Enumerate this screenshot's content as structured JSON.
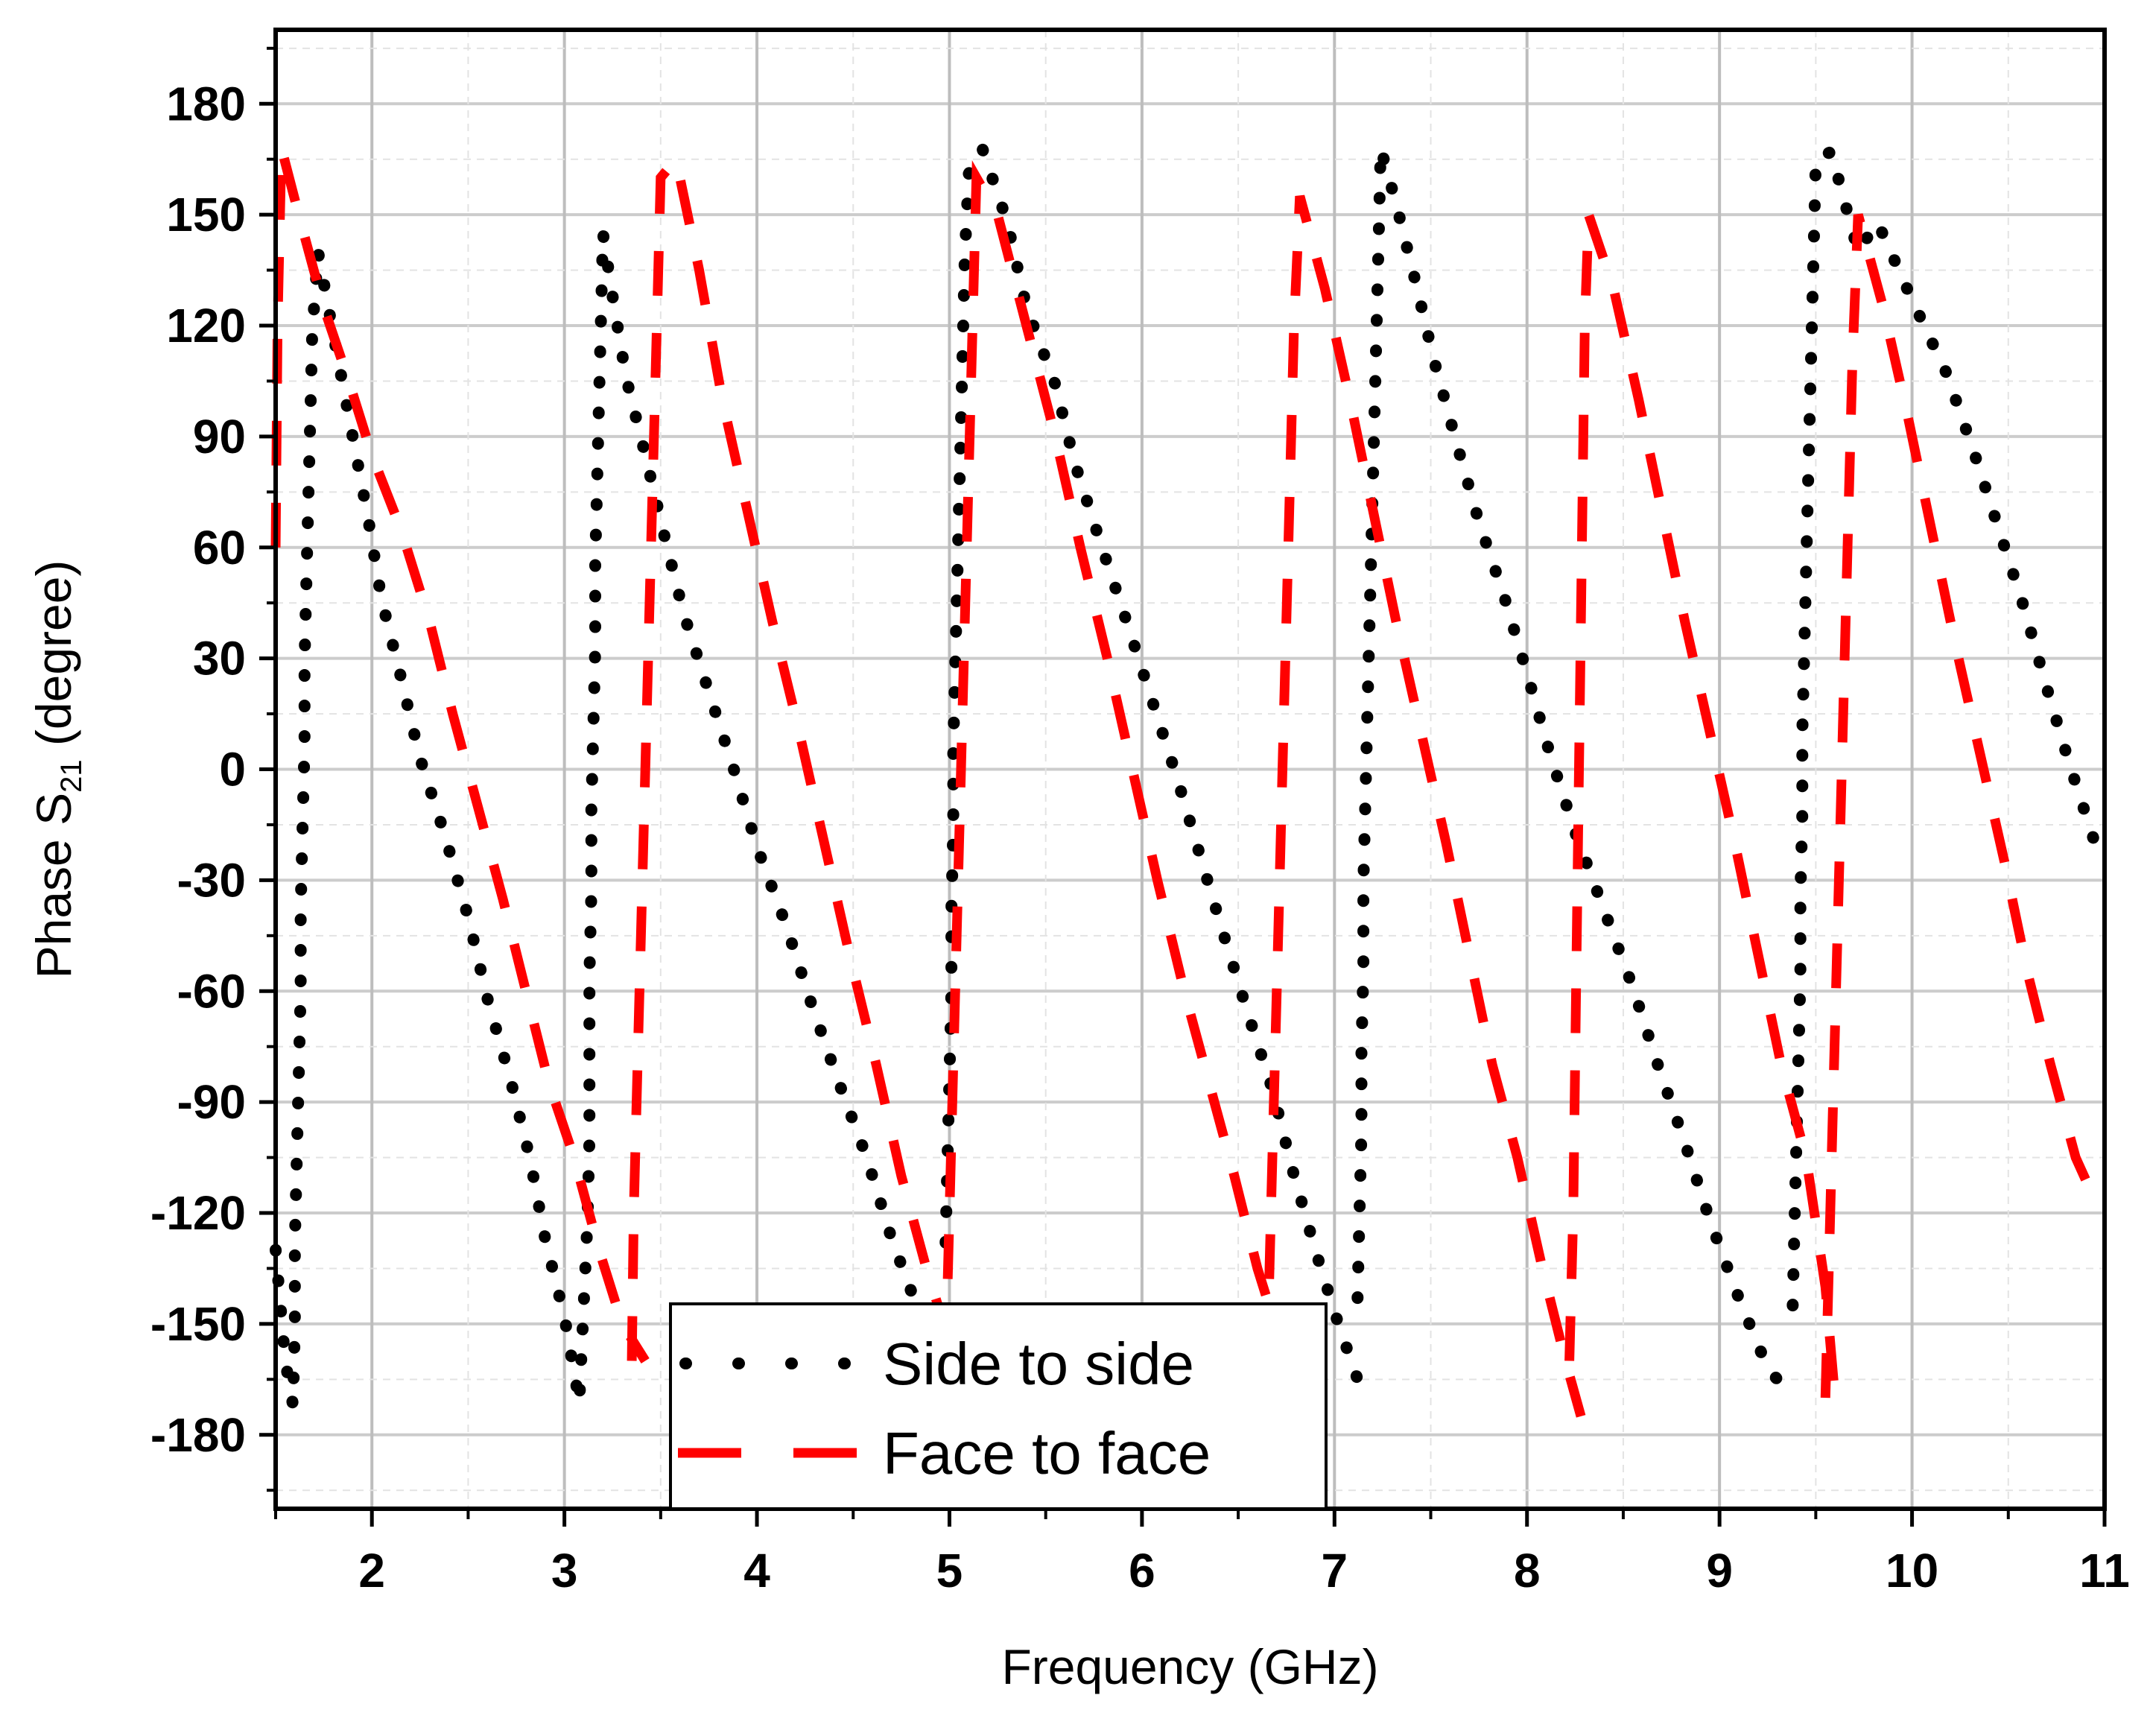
{
  "chart_data": {
    "type": "line",
    "xlabel": "Frequency (GHz)",
    "ylabel_main": "Phase  S",
    "ylabel_sub": "21",
    "ylabel_end": " (degree)",
    "xlim": [
      1.5,
      11
    ],
    "ylim": [
      -200,
      200
    ],
    "xticks": [
      2,
      3,
      4,
      5,
      6,
      7,
      8,
      9,
      10,
      11
    ],
    "yticks": [
      180,
      150,
      120,
      90,
      60,
      30,
      0,
      -30,
      -60,
      -90,
      -120,
      -150,
      -180
    ],
    "grid": true,
    "legend_position": "bottom-center",
    "series": [
      {
        "name": "Side to side",
        "color": "#000000",
        "style": "dotted",
        "segments": [
          [
            [
              1.5,
              -130
            ],
            [
              1.55,
              -160
            ],
            [
              1.59,
              -172
            ],
            [
              1.6,
              -150
            ],
            [
              1.6,
              -128
            ],
            [
              1.61,
              -105
            ],
            [
              1.62,
              -83
            ],
            [
              1.63,
              -60
            ],
            [
              1.63,
              -38
            ],
            [
              1.64,
              -15
            ],
            [
              1.65,
              7
            ],
            [
              1.65,
              29
            ],
            [
              1.66,
              51
            ],
            [
              1.67,
              73
            ],
            [
              1.68,
              95
            ],
            [
              1.69,
              118
            ],
            [
              1.72,
              140
            ],
            [
              1.82,
              112
            ],
            [
              1.9,
              90
            ],
            [
              1.98,
              68
            ],
            [
              2.05,
              46
            ],
            [
              2.15,
              25
            ],
            [
              2.25,
              3
            ],
            [
              2.38,
              -18
            ],
            [
              2.5,
              -40
            ],
            [
              2.6,
              -62
            ],
            [
              2.72,
              -84
            ],
            [
              2.82,
              -105
            ],
            [
              2.9,
              -127
            ],
            [
              3.0,
              -148
            ],
            [
              3.08,
              -172
            ]
          ],
          [
            [
              3.08,
              -168
            ],
            [
              3.1,
              -145
            ],
            [
              3.12,
              -122
            ],
            [
              3.13,
              -100
            ],
            [
              3.13,
              -78
            ],
            [
              3.13,
              -56
            ],
            [
              3.14,
              -33
            ],
            [
              3.14,
              -11
            ],
            [
              3.15,
              11
            ],
            [
              3.16,
              33
            ],
            [
              3.16,
              56
            ],
            [
              3.17,
              78
            ],
            [
              3.18,
              100
            ],
            [
              3.19,
              122
            ],
            [
              3.2,
              145
            ],
            [
              3.25,
              128
            ],
            [
              3.32,
              106
            ],
            [
              3.42,
              85
            ],
            [
              3.52,
              63
            ],
            [
              3.62,
              42
            ],
            [
              3.75,
              21
            ],
            [
              3.88,
              0
            ],
            [
              4.0,
              -21
            ],
            [
              4.15,
              -42
            ],
            [
              4.28,
              -63
            ],
            [
              4.42,
              -84
            ],
            [
              4.57,
              -105
            ],
            [
              4.7,
              -127
            ],
            [
              4.85,
              -148
            ],
            [
              4.95,
              -160
            ]
          ],
          [
            [
              4.98,
              -128
            ],
            [
              4.99,
              -105
            ],
            [
              5.0,
              -83
            ],
            [
              5.01,
              -60
            ],
            [
              5.01,
              -38
            ],
            [
              5.02,
              -16
            ],
            [
              5.02,
              6
            ],
            [
              5.03,
              28
            ],
            [
              5.04,
              50
            ],
            [
              5.05,
              72
            ],
            [
              5.06,
              94
            ],
            [
              5.07,
              117
            ],
            [
              5.08,
              139
            ],
            [
              5.1,
              161
            ],
            [
              5.17,
              168
            ],
            [
              5.3,
              148
            ],
            [
              5.4,
              125
            ],
            [
              5.55,
              104
            ],
            [
              5.65,
              83
            ],
            [
              5.78,
              62
            ],
            [
              5.92,
              40
            ],
            [
              6.05,
              19
            ],
            [
              6.18,
              -2
            ],
            [
              6.3,
              -23
            ],
            [
              6.42,
              -44
            ],
            [
              6.55,
              -66
            ],
            [
              6.68,
              -87
            ],
            [
              6.78,
              -108
            ],
            [
              6.9,
              -130
            ],
            [
              7.02,
              -150
            ],
            [
              7.12,
              -165
            ]
          ],
          [
            [
              7.12,
              -143
            ],
            [
              7.13,
              -120
            ],
            [
              7.14,
              -98
            ],
            [
              7.14,
              -76
            ],
            [
              7.15,
              -54
            ],
            [
              7.15,
              -31
            ],
            [
              7.16,
              -9
            ],
            [
              7.17,
              13
            ],
            [
              7.18,
              35
            ],
            [
              7.19,
              57
            ],
            [
              7.2,
              79
            ],
            [
              7.21,
              101
            ],
            [
              7.22,
              123
            ],
            [
              7.23,
              145
            ],
            [
              7.24,
              168
            ],
            [
              7.32,
              153
            ],
            [
              7.42,
              132
            ],
            [
              7.52,
              110
            ],
            [
              7.63,
              89
            ],
            [
              7.75,
              67
            ],
            [
              7.88,
              47
            ],
            [
              8.0,
              26
            ],
            [
              8.12,
              4
            ],
            [
              8.25,
              -17
            ],
            [
              8.4,
              -38
            ],
            [
              8.55,
              -59
            ],
            [
              8.68,
              -80
            ],
            [
              8.82,
              -101
            ],
            [
              8.95,
              -122
            ],
            [
              9.1,
              -143
            ],
            [
              9.25,
              -162
            ],
            [
              9.35,
              -168
            ]
          ],
          [
            [
              9.38,
              -145
            ],
            [
              9.39,
              -122
            ],
            [
              9.4,
              -100
            ],
            [
              9.41,
              -78
            ],
            [
              9.42,
              -56
            ],
            [
              9.42,
              -34
            ],
            [
              9.43,
              -12
            ],
            [
              9.43,
              10
            ],
            [
              9.44,
              32
            ],
            [
              9.45,
              54
            ],
            [
              9.46,
              77
            ],
            [
              9.47,
              99
            ],
            [
              9.48,
              121
            ],
            [
              9.49,
              143
            ],
            [
              9.5,
              165
            ],
            [
              9.58,
              167
            ],
            [
              9.72,
              140
            ],
            [
              9.82,
              148
            ],
            [
              10.0,
              127
            ],
            [
              10.18,
              107
            ],
            [
              10.32,
              86
            ],
            [
              10.45,
              65
            ],
            [
              10.58,
              44
            ],
            [
              10.7,
              22
            ],
            [
              10.82,
              1
            ],
            [
              10.95,
              -20
            ]
          ]
        ]
      },
      {
        "name": "Face to face",
        "color": "#ff0000",
        "style": "dashed",
        "segments": [
          [
            [
              1.5,
              60
            ],
            [
              1.51,
              120
            ],
            [
              1.53,
              168
            ],
            [
              1.62,
              150
            ],
            [
              1.75,
              125
            ],
            [
              1.88,
              105
            ],
            [
              2.0,
              85
            ],
            [
              2.15,
              65
            ],
            [
              2.3,
              40
            ],
            [
              2.42,
              15
            ],
            [
              2.55,
              -10
            ],
            [
              2.68,
              -35
            ],
            [
              2.8,
              -60
            ],
            [
              2.92,
              -85
            ],
            [
              3.05,
              -105
            ],
            [
              3.18,
              -130
            ],
            [
              3.3,
              -150
            ],
            [
              3.42,
              -160
            ]
          ],
          [
            [
              3.35,
              -160
            ],
            [
              3.36,
              -120
            ],
            [
              3.38,
              -80
            ],
            [
              3.4,
              -40
            ],
            [
              3.42,
              0
            ],
            [
              3.44,
              40
            ],
            [
              3.46,
              80
            ],
            [
              3.48,
              120
            ],
            [
              3.5,
              160
            ],
            [
              3.58,
              165
            ],
            [
              3.7,
              135
            ],
            [
              3.82,
              100
            ],
            [
              3.95,
              70
            ],
            [
              4.08,
              40
            ],
            [
              4.22,
              10
            ],
            [
              4.35,
              -20
            ],
            [
              4.48,
              -50
            ],
            [
              4.62,
              -80
            ],
            [
              4.75,
              -110
            ],
            [
              4.88,
              -135
            ],
            [
              5.0,
              -155
            ]
          ],
          [
            [
              4.98,
              -160
            ],
            [
              5.0,
              -120
            ],
            [
              5.02,
              -80
            ],
            [
              5.04,
              -40
            ],
            [
              5.06,
              0
            ],
            [
              5.08,
              40
            ],
            [
              5.1,
              80
            ],
            [
              5.12,
              120
            ],
            [
              5.14,
              160
            ],
            [
              5.25,
              150
            ],
            [
              5.4,
              120
            ],
            [
              5.55,
              90
            ],
            [
              5.68,
              60
            ],
            [
              5.82,
              30
            ],
            [
              5.95,
              0
            ],
            [
              6.08,
              -30
            ],
            [
              6.22,
              -60
            ],
            [
              6.35,
              -85
            ],
            [
              6.48,
              -110
            ],
            [
              6.6,
              -135
            ],
            [
              6.72,
              -155
            ]
          ],
          [
            [
              6.65,
              -160
            ],
            [
              6.67,
              -120
            ],
            [
              6.69,
              -80
            ],
            [
              6.71,
              -40
            ],
            [
              6.73,
              0
            ],
            [
              6.75,
              40
            ],
            [
              6.77,
              80
            ],
            [
              6.79,
              120
            ],
            [
              6.82,
              155
            ],
            [
              6.95,
              130
            ],
            [
              7.08,
              100
            ],
            [
              7.2,
              70
            ],
            [
              7.32,
              40
            ],
            [
              7.45,
              10
            ],
            [
              7.58,
              -20
            ],
            [
              7.7,
              -50
            ],
            [
              7.82,
              -80
            ],
            [
              7.95,
              -105
            ],
            [
              8.08,
              -135
            ],
            [
              8.2,
              -160
            ],
            [
              8.28,
              -175
            ]
          ],
          [
            [
              8.22,
              -160
            ],
            [
              8.24,
              -120
            ],
            [
              8.25,
              -80
            ],
            [
              8.26,
              -40
            ],
            [
              8.27,
              0
            ],
            [
              8.28,
              40
            ],
            [
              8.29,
              80
            ],
            [
              8.3,
              120
            ],
            [
              8.32,
              150
            ],
            [
              8.45,
              130
            ],
            [
              8.58,
              100
            ],
            [
              8.7,
              70
            ],
            [
              8.82,
              40
            ],
            [
              8.95,
              10
            ],
            [
              9.08,
              -20
            ],
            [
              9.2,
              -50
            ],
            [
              9.32,
              -80
            ],
            [
              9.45,
              -105
            ],
            [
              9.55,
              -140
            ],
            [
              9.6,
              -170
            ]
          ],
          [
            [
              9.55,
              -170
            ],
            [
              9.57,
              -130
            ],
            [
              9.59,
              -90
            ],
            [
              9.61,
              -50
            ],
            [
              9.63,
              -10
            ],
            [
              9.65,
              30
            ],
            [
              9.67,
              70
            ],
            [
              9.69,
              110
            ],
            [
              9.72,
              150
            ],
            [
              9.85,
              125
            ],
            [
              9.98,
              95
            ],
            [
              10.1,
              65
            ],
            [
              10.22,
              35
            ],
            [
              10.35,
              5
            ],
            [
              10.48,
              -25
            ],
            [
              10.6,
              -55
            ],
            [
              10.72,
              -80
            ],
            [
              10.85,
              -105
            ],
            [
              10.98,
              -120
            ]
          ]
        ]
      }
    ]
  }
}
